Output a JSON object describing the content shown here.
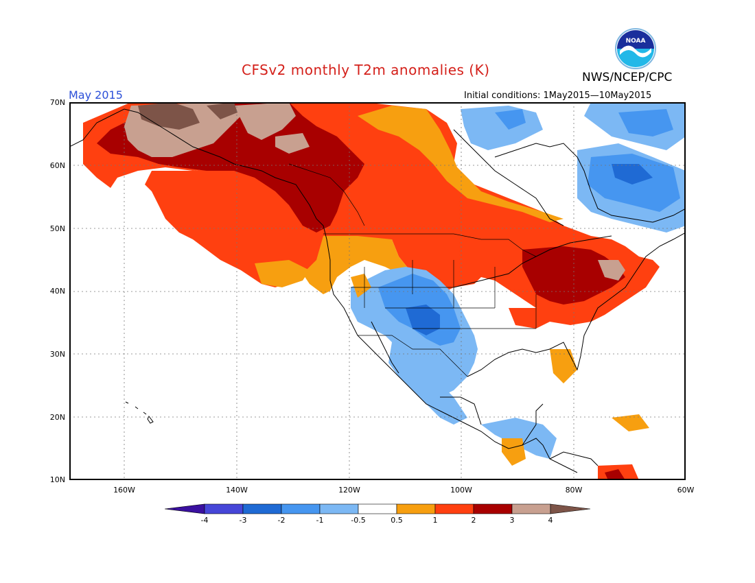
{
  "header": {
    "title": "CFSv2 monthly T2m anomalies (K)",
    "agency": "NWS/NCEP/CPC",
    "month": "May 2015",
    "initial_conditions": "Initial conditions: 1May2015—10May2015",
    "logo_icon": "noaa-logo-icon",
    "logo_text": "NOAA"
  },
  "map": {
    "lat_labels": [
      "70N",
      "60N",
      "50N",
      "40N",
      "30N",
      "20N",
      "10N"
    ],
    "lon_labels": [
      "160W",
      "140W",
      "120W",
      "100W",
      "80W",
      "60W"
    ]
  },
  "colorbar": {
    "labels": [
      "-4",
      "-3",
      "-2",
      "-1",
      "-0.5",
      "0.5",
      "1",
      "2",
      "3",
      "4"
    ],
    "colors": [
      "#3a10a0",
      "#4646d8",
      "#1f6ad4",
      "#4696f0",
      "#7cb8f4",
      "#ffffff",
      "#f79f10",
      "#ff4010",
      "#a80000",
      "#c8a090",
      "#7d5448"
    ]
  }
}
